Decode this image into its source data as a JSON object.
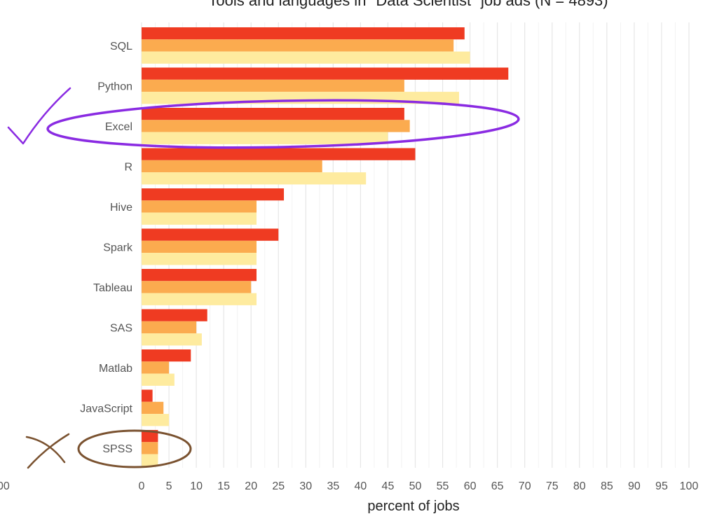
{
  "chart_data": {
    "type": "bar",
    "orientation": "horizontal",
    "title": "Tools and languages in \"Data Scientist\" job ads (N = 4893)",
    "xlabel": "percent of jobs",
    "ylabel": "",
    "xlim": [
      0,
      100
    ],
    "grid": true,
    "categories": [
      "SQL",
      "Python",
      "Excel",
      "R",
      "Hive",
      "Spark",
      "Tableau",
      "SAS",
      "Matlab",
      "JavaScript",
      "SPSS"
    ],
    "x_ticks": [
      "0",
      "5",
      "10",
      "15",
      "20",
      "25",
      "30",
      "35",
      "40",
      "45",
      "50",
      "55",
      "60",
      "65",
      "70",
      "75",
      "80",
      "85",
      "90",
      "95",
      "100"
    ],
    "partial_tick_label": "00",
    "series": [
      {
        "values": [
          59,
          67,
          48,
          50,
          26,
          25,
          21,
          12,
          9,
          2,
          3
        ],
        "color": "#ef3b22"
      },
      {
        "values": [
          57,
          48,
          49,
          33,
          21,
          21,
          20,
          10,
          5,
          4,
          3
        ],
        "color": "#fbab4f"
      },
      {
        "values": [
          60,
          58,
          45,
          41,
          21,
          21,
          21,
          11,
          6,
          5,
          3
        ],
        "color": "#feeb9f"
      }
    ]
  },
  "annotations": {
    "check_mark_color": "#8a2be2",
    "excel_highlight_color": "#8a2be2",
    "cross_mark_color": "#7a5230",
    "spss_highlight_color": "#7a5230"
  }
}
